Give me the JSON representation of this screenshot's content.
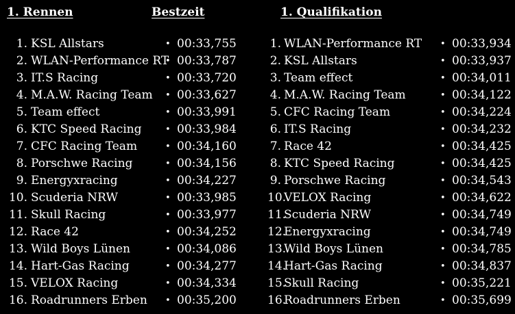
{
  "race": {
    "heading": "1. Rennen",
    "time_heading": "Bestzeit",
    "rows": [
      {
        "pos": "1.",
        "team": "KSL Allstars",
        "time": "00:33,755"
      },
      {
        "pos": "2.",
        "team": "WLAN-Performance RT",
        "time": "00:33,787"
      },
      {
        "pos": "3.",
        "team": "IT.S Racing",
        "time": "00:33,720"
      },
      {
        "pos": "4.",
        "team": "M.A.W. Racing Team",
        "time": "00:33,627"
      },
      {
        "pos": "5.",
        "team": "Team effect",
        "time": "00:33,991"
      },
      {
        "pos": "6.",
        "team": "KTC Speed Racing",
        "time": "00:33,984"
      },
      {
        "pos": "7.",
        "team": "CFC Racing Team",
        "time": "00:34,160"
      },
      {
        "pos": "8.",
        "team": "Porschwe Racing",
        "time": "00:34,156"
      },
      {
        "pos": "9.",
        "team": "Energyxracing",
        "time": "00:34,227"
      },
      {
        "pos": "10.",
        "team": "Scuderia NRW",
        "time": "00:33,985"
      },
      {
        "pos": "11.",
        "team": "Skull Racing",
        "time": "00:33,977"
      },
      {
        "pos": "12.",
        "team": "Race 42",
        "time": "00:34,252"
      },
      {
        "pos": "13.",
        "team": "Wild Boys Lünen",
        "time": "00:34,086"
      },
      {
        "pos": "14.",
        "team": "Hart-Gas Racing",
        "time": "00:34,277"
      },
      {
        "pos": "15.",
        "team": "VELOX Racing",
        "time": "00:34,334"
      },
      {
        "pos": "16.",
        "team": "Roadrunners Erben",
        "time": "00:35,200"
      }
    ]
  },
  "qualifying": {
    "heading": "1. Qualifikation",
    "rows": [
      {
        "pos": "1.",
        "team": "WLAN-Performance RT",
        "time": "00:33,934"
      },
      {
        "pos": "2.",
        "team": "KSL Allstars",
        "time": "00:33,937"
      },
      {
        "pos": "3.",
        "team": "Team effect",
        "time": "00:34,011"
      },
      {
        "pos": "4.",
        "team": "M.A.W. Racing Team",
        "time": "00:34,122"
      },
      {
        "pos": "5.",
        "team": "CFC Racing Team",
        "time": "00:34,224"
      },
      {
        "pos": "6.",
        "team": "IT.S Racing",
        "time": "00:34,232"
      },
      {
        "pos": "7.",
        "team": "Race 42",
        "time": "00:34,425"
      },
      {
        "pos": "8.",
        "team": "KTC Speed Racing",
        "time": "00:34,425"
      },
      {
        "pos": "9.",
        "team": "Porschwe Racing",
        "time": "00:34,543"
      },
      {
        "pos": "10.",
        "team": "VELOX Racing",
        "time": "00:34,622"
      },
      {
        "pos": "11.",
        "team": "Scuderia NRW",
        "time": "00:34,749"
      },
      {
        "pos": "12.",
        "team": "Energyxracing",
        "time": "00:34,749"
      },
      {
        "pos": "13.",
        "team": "Wild Boys Lünen",
        "time": "00:34,785"
      },
      {
        "pos": "14.",
        "team": "Hart-Gas Racing",
        "time": "00:34,837"
      },
      {
        "pos": "15.",
        "team": "Skull Racing",
        "time": "00:35,221"
      },
      {
        "pos": "16.",
        "team": "Roadrunners Erben",
        "time": "00:35,699"
      }
    ]
  },
  "bullet": "•",
  "colors": {
    "background": "#000000",
    "text": "#ffffff"
  }
}
